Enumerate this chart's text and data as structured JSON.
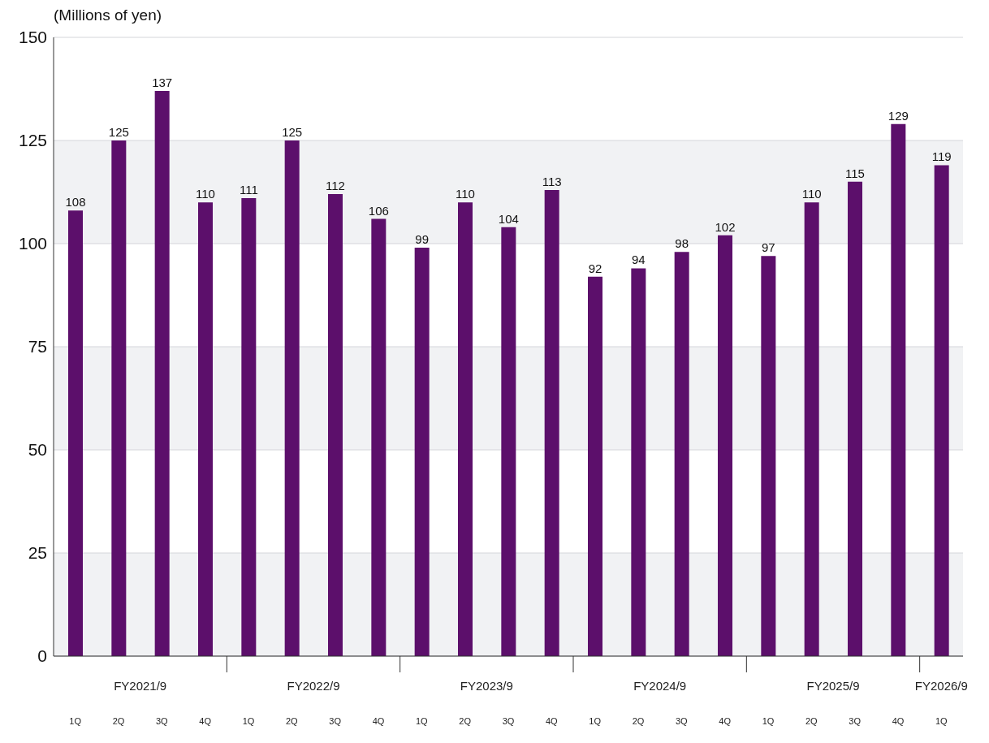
{
  "chart_data": {
    "type": "bar",
    "ylabel": "(Millions of yen)",
    "categories": [
      "1Q",
      "2Q",
      "3Q",
      "4Q",
      "1Q",
      "2Q",
      "3Q",
      "4Q",
      "1Q",
      "2Q",
      "3Q",
      "4Q",
      "1Q",
      "2Q",
      "3Q",
      "4Q",
      "1Q",
      "2Q",
      "3Q",
      "4Q",
      "1Q"
    ],
    "values": [
      108,
      125,
      137,
      110,
      111,
      125,
      112,
      106,
      99,
      110,
      104,
      113,
      92,
      94,
      98,
      102,
      97,
      110,
      115,
      129,
      119
    ],
    "color": "#5c0f6b",
    "ylim": [
      0,
      150
    ],
    "yticks": [
      0,
      25,
      50,
      75,
      100,
      125,
      150
    ],
    "grid": "y",
    "data_labels": true,
    "annotations": [
      "FY2021/9",
      "FY2022/9",
      "FY2023/9",
      "FY2024/9",
      "FY2025/9",
      "FY2026/9"
    ]
  }
}
